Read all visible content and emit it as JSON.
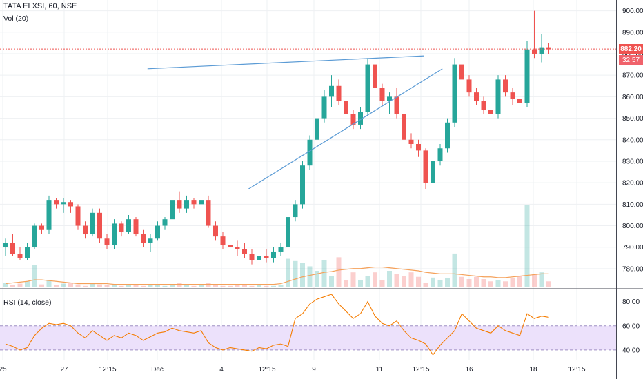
{
  "chart_title": "TATA ELXSI, 60, NSE",
  "volume_label": "Vol (20)",
  "rsi_label": "RSI (14, close)",
  "last_price_badge": "882.20",
  "countdown_badge": "32:57",
  "colors": {
    "up": "#26a69a",
    "down": "#ef5350",
    "trendline": "#5b9bd5",
    "rsi_line": "#f57c00",
    "rsi_band": "#ece1fb",
    "vol_ma": "#f5a15a",
    "price_line": "#ef5350",
    "badge_price": "#ef5350",
    "badge_timer": "#f0626b"
  },
  "chart_data": [
    {
      "type": "candlestick",
      "title": "TATA ELXSI, 60, NSE",
      "ylim": [
        771,
        905
      ],
      "yticks": [
        "900.00",
        "890.00",
        "880.00",
        "870.00",
        "860.00",
        "850.00",
        "840.00",
        "830.00",
        "820.00",
        "810.00",
        "800.00",
        "790.00",
        "780.00"
      ],
      "xticks": [
        "25",
        "27",
        "12:15",
        "Dec",
        "4",
        "12:15",
        "9",
        "11",
        "12:15",
        "16",
        "18",
        "12:15"
      ],
      "last_price": 882.2,
      "ohlc": [
        [
          790,
          794,
          786,
          792
        ],
        [
          792,
          796,
          786,
          787
        ],
        [
          787,
          790,
          784,
          785
        ],
        [
          785,
          792,
          784,
          790
        ],
        [
          790,
          801,
          789,
          800
        ],
        [
          800,
          801,
          796,
          798
        ],
        [
          798,
          814,
          796,
          812
        ],
        [
          812,
          813,
          808,
          810
        ],
        [
          810,
          813,
          806,
          811
        ],
        [
          811,
          812,
          806,
          809
        ],
        [
          809,
          810,
          798,
          800
        ],
        [
          800,
          802,
          794,
          796
        ],
        [
          796,
          808,
          795,
          806
        ],
        [
          806,
          808,
          792,
          794
        ],
        [
          794,
          796,
          789,
          791
        ],
        [
          791,
          803,
          789,
          801
        ],
        [
          801,
          802,
          795,
          797
        ],
        [
          797,
          805,
          796,
          803
        ],
        [
          803,
          804,
          795,
          796
        ],
        [
          796,
          798,
          790,
          792
        ],
        [
          792,
          796,
          788,
          794
        ],
        [
          794,
          802,
          793,
          800
        ],
        [
          800,
          804,
          798,
          803
        ],
        [
          803,
          814,
          802,
          812
        ],
        [
          812,
          816,
          806,
          808
        ],
        [
          808,
          814,
          806,
          812
        ],
        [
          812,
          813,
          808,
          810
        ],
        [
          810,
          813,
          807,
          812
        ],
        [
          812,
          814,
          799,
          800
        ],
        [
          800,
          802,
          793,
          795
        ],
        [
          795,
          797,
          789,
          791
        ],
        [
          791,
          794,
          788,
          790
        ],
        [
          790,
          793,
          786,
          789
        ],
        [
          789,
          792,
          785,
          787
        ],
        [
          787,
          789,
          782,
          784
        ],
        [
          784,
          787,
          780,
          786
        ],
        [
          786,
          789,
          783,
          785
        ],
        [
          785,
          790,
          783,
          788
        ],
        [
          788,
          792,
          786,
          790
        ],
        [
          790,
          806,
          788,
          804
        ],
        [
          804,
          812,
          802,
          810
        ],
        [
          810,
          830,
          808,
          828
        ],
        [
          828,
          842,
          826,
          840
        ],
        [
          840,
          852,
          838,
          850
        ],
        [
          850,
          863,
          848,
          860
        ],
        [
          860,
          870,
          855,
          865
        ],
        [
          865,
          868,
          856,
          858
        ],
        [
          858,
          860,
          850,
          852
        ],
        [
          852,
          854,
          845,
          847
        ],
        [
          847,
          855,
          845,
          853
        ],
        [
          853,
          878,
          851,
          875
        ],
        [
          875,
          876,
          862,
          864
        ],
        [
          864,
          866,
          856,
          858
        ],
        [
          858,
          862,
          852,
          860
        ],
        [
          860,
          864,
          850,
          852
        ],
        [
          852,
          853,
          838,
          840
        ],
        [
          840,
          843,
          836,
          838
        ],
        [
          838,
          840,
          832,
          835
        ],
        [
          835,
          836,
          817,
          820
        ],
        [
          820,
          832,
          818,
          830
        ],
        [
          830,
          838,
          828,
          836
        ],
        [
          836,
          850,
          834,
          848
        ],
        [
          848,
          878,
          846,
          875
        ],
        [
          875,
          876,
          866,
          868
        ],
        [
          868,
          870,
          860,
          862
        ],
        [
          862,
          864,
          856,
          858
        ],
        [
          858,
          860,
          852,
          854
        ],
        [
          854,
          856,
          850,
          852
        ],
        [
          852,
          870,
          850,
          868
        ],
        [
          868,
          870,
          860,
          862
        ],
        [
          862,
          864,
          856,
          859
        ],
        [
          859,
          861,
          855,
          857
        ],
        [
          857,
          886,
          855,
          882
        ],
        [
          882,
          900,
          878,
          880
        ],
        [
          880,
          889,
          876,
          883
        ],
        [
          883,
          885,
          880,
          882.2
        ]
      ],
      "trendlines": [
        {
          "from": {
            "index": 19.6,
            "price": 873
          },
          "to": {
            "index": 54,
            "price": 879
          }
        },
        {
          "from": {
            "index": 33.5,
            "price": 817
          },
          "to": {
            "index": 56.5,
            "price": 873
          }
        }
      ]
    },
    {
      "type": "volume",
      "title": "Vol (20)",
      "values": [
        0.6,
        0.3,
        0.5,
        0.8,
        3.0,
        0.4,
        0.9,
        0.3,
        0.5,
        0.6,
        0.4,
        0.2,
        0.5,
        0.4,
        0.3,
        0.4,
        0.2,
        0.3,
        0.4,
        0.2,
        0.3,
        0.4,
        0.2,
        0.3,
        0.6,
        0.4,
        0.2,
        0.3,
        0.6,
        0.4,
        0.2,
        0.2,
        0.3,
        0.3,
        0.2,
        0.3,
        0.2,
        0.2,
        0.3,
        3.8,
        3.5,
        3.3,
        2.8,
        2.2,
        3.6,
        1.5,
        4.0,
        1.0,
        2.0,
        1.0,
        1.5,
        2.0,
        1.0,
        2.2,
        1.8,
        1.5,
        2.0,
        1.4,
        0.6,
        1.3,
        1.0,
        1.2,
        4.5,
        1.4,
        1.1,
        1.4,
        1.1,
        0.8,
        1.0,
        0.8,
        1.2,
        1.5,
        11.0,
        1.8,
        2.0,
        0.8
      ],
      "ma": [
        0.5,
        0.6,
        0.7,
        0.8,
        1.0,
        1.0,
        0.9,
        0.8,
        0.7,
        0.6,
        0.5,
        0.5,
        0.5,
        0.5,
        0.5,
        0.4,
        0.4,
        0.4,
        0.4,
        0.4,
        0.4,
        0.4,
        0.4,
        0.4,
        0.4,
        0.4,
        0.4,
        0.4,
        0.4,
        0.4,
        0.4,
        0.4,
        0.4,
        0.4,
        0.4,
        0.4,
        0.4,
        0.4,
        0.5,
        0.8,
        1.1,
        1.4,
        1.6,
        1.8,
        2.0,
        2.1,
        2.3,
        2.4,
        2.5,
        2.5,
        2.6,
        2.7,
        2.7,
        2.6,
        2.5,
        2.4,
        2.3,
        2.2,
        2.0,
        1.9,
        1.8,
        1.8,
        1.8,
        1.7,
        1.6,
        1.5,
        1.4,
        1.4,
        1.3,
        1.3,
        1.4,
        1.5,
        1.6,
        1.7,
        1.8,
        1.8
      ]
    },
    {
      "type": "line",
      "title": "RSI (14, close)",
      "ylim": [
        32,
        90
      ],
      "yticks": [
        "80.00",
        "60.00",
        "40.00"
      ],
      "band": [
        40,
        60
      ],
      "values": [
        45,
        43,
        40,
        42,
        52,
        58,
        62,
        61,
        62,
        60,
        54,
        50,
        56,
        52,
        48,
        52,
        50,
        54,
        52,
        48,
        51,
        54,
        55,
        58,
        56,
        55,
        54,
        56,
        46,
        42,
        40,
        42,
        41,
        40,
        39,
        42,
        41,
        44,
        45,
        43,
        66,
        70,
        78,
        82,
        84,
        86,
        78,
        72,
        66,
        70,
        80,
        68,
        62,
        60,
        64,
        56,
        50,
        48,
        45,
        36,
        44,
        50,
        56,
        70,
        64,
        58,
        56,
        54,
        60,
        56,
        54,
        52,
        70,
        66,
        68,
        67
      ]
    }
  ]
}
